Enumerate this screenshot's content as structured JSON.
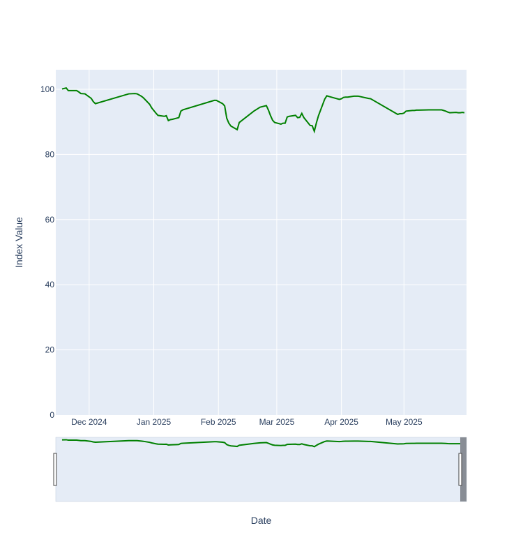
{
  "chart_data": {
    "type": "line",
    "title": "",
    "xlabel": "Date",
    "ylabel": "Index Value",
    "ylim": [
      0,
      106
    ],
    "xlim": [
      "2024-11-15",
      "2025-05-31"
    ],
    "grid": true,
    "legend": "none",
    "y_ticks": [
      0,
      20,
      40,
      60,
      80,
      100
    ],
    "x_ticks": [
      {
        "date": "2024-12-01",
        "label": "Dec 2024"
      },
      {
        "date": "2025-01-01",
        "label": "Jan 2025"
      },
      {
        "date": "2025-02-01",
        "label": "Feb 2025"
      },
      {
        "date": "2025-03-01",
        "label": "Mar 2025"
      },
      {
        "date": "2025-04-01",
        "label": "Apr 2025"
      },
      {
        "date": "2025-05-01",
        "label": "May 2025"
      }
    ],
    "range_slider": true,
    "colors": {
      "line": "#008000",
      "plot_bg": "#e5ecf6",
      "grid": "#ffffff",
      "text": "#2a3f5f",
      "slider_mask": "#888d95"
    },
    "series": [
      {
        "x": [
          "2024-11-18",
          "2024-11-20",
          "2024-11-21",
          "2024-11-22",
          "2024-11-25",
          "2024-11-26",
          "2024-11-27",
          "2024-11-29",
          "2024-12-02",
          "2024-12-03",
          "2024-12-04",
          "2024-12-20",
          "2024-12-23",
          "2024-12-24",
          "2024-12-26",
          "2024-12-27",
          "2024-12-30",
          "2024-12-31",
          "2025-01-02",
          "2025-01-03",
          "2025-01-06",
          "2025-01-07",
          "2025-01-08",
          "2025-01-09",
          "2025-01-10",
          "2025-01-13",
          "2025-01-14",
          "2025-01-15",
          "2025-01-30",
          "2025-01-31",
          "2025-02-03",
          "2025-02-04",
          "2025-02-05",
          "2025-02-06",
          "2025-02-07",
          "2025-02-10",
          "2025-02-11",
          "2025-02-12",
          "2025-02-18",
          "2025-02-21",
          "2025-02-24",
          "2025-02-25",
          "2025-02-26",
          "2025-02-27",
          "2025-02-28",
          "2025-03-03",
          "2025-03-04",
          "2025-03-05",
          "2025-03-06",
          "2025-03-07",
          "2025-03-10",
          "2025-03-11",
          "2025-03-12",
          "2025-03-13",
          "2025-03-14",
          "2025-03-17",
          "2025-03-18",
          "2025-03-19",
          "2025-03-20",
          "2025-03-21",
          "2025-03-24",
          "2025-03-25",
          "2025-03-26",
          "2025-03-31",
          "2025-04-01",
          "2025-04-02",
          "2025-04-03",
          "2025-04-04",
          "2025-04-07",
          "2025-04-08",
          "2025-04-09",
          "2025-04-14",
          "2025-04-15",
          "2025-04-28",
          "2025-04-29",
          "2025-04-30",
          "2025-05-01",
          "2025-05-02",
          "2025-05-05",
          "2025-05-06",
          "2025-05-07",
          "2025-05-08",
          "2025-05-13",
          "2025-05-19",
          "2025-05-20",
          "2025-05-21",
          "2025-05-22",
          "2025-05-23",
          "2025-05-26",
          "2025-05-27",
          "2025-05-28",
          "2025-05-29",
          "2025-05-30"
        ],
        "y": [
          100.1,
          100.4,
          99.6,
          99.6,
          99.6,
          99.2,
          98.7,
          98.6,
          97.2,
          96.2,
          95.6,
          98.6,
          98.7,
          98.6,
          97.9,
          97.4,
          95.4,
          94.3,
          92.7,
          92.0,
          91.7,
          91.9,
          90.4,
          90.7,
          90.8,
          91.3,
          93.3,
          93.7,
          96.6,
          96.6,
          95.6,
          94.9,
          91.1,
          89.6,
          88.7,
          87.6,
          89.8,
          90.3,
          93.3,
          94.5,
          95.0,
          93.6,
          91.9,
          90.5,
          89.8,
          89.3,
          89.6,
          89.6,
          91.5,
          91.7,
          92.0,
          91.3,
          91.4,
          92.6,
          91.3,
          88.9,
          88.8,
          87.1,
          89.7,
          91.9,
          97.0,
          98.0,
          97.8,
          96.9,
          97.1,
          97.5,
          97.6,
          97.6,
          97.9,
          97.9,
          97.9,
          97.2,
          97.1,
          92.3,
          92.5,
          92.5,
          92.7,
          93.3,
          93.5,
          93.5,
          93.6,
          93.6,
          93.7,
          93.7,
          93.5,
          93.3,
          93.0,
          92.8,
          92.9,
          92.8,
          92.8,
          92.9,
          92.8
        ]
      }
    ]
  }
}
